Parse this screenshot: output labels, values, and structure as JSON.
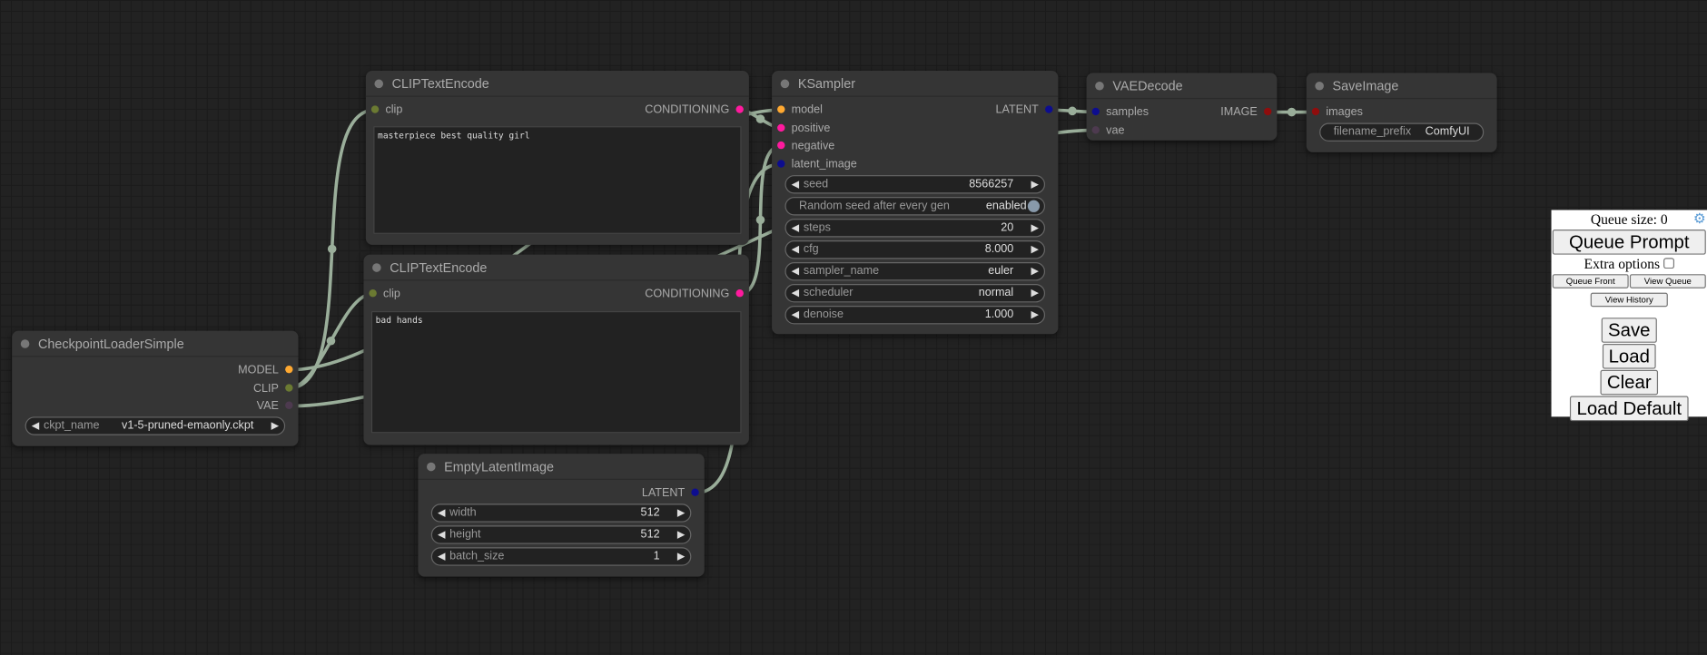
{
  "slot_colors": {
    "MODEL": "#ffa931",
    "CLIP": "#6b7a32",
    "VAE": "#4d3a4f",
    "CONDITIONING": "#ff1a9e",
    "LATENT": "#0d0d8f",
    "IMAGE": "#8f0d0d",
    "link": "#9aae9a"
  },
  "nodes": {
    "clip1": {
      "title": "CLIPTextEncode",
      "inputs": [
        {
          "name": "clip",
          "type": "CLIP"
        }
      ],
      "outputs": [
        {
          "name": "CONDITIONING",
          "type": "CONDITIONING"
        }
      ],
      "text": "masterpiece best quality girl"
    },
    "clip2": {
      "title": "CLIPTextEncode",
      "inputs": [
        {
          "name": "clip",
          "type": "CLIP"
        }
      ],
      "outputs": [
        {
          "name": "CONDITIONING",
          "type": "CONDITIONING"
        }
      ],
      "text": "bad hands"
    },
    "ckpt": {
      "title": "CheckpointLoaderSimple",
      "inputs": [],
      "outputs": [
        {
          "name": "MODEL",
          "type": "MODEL"
        },
        {
          "name": "CLIP",
          "type": "CLIP"
        },
        {
          "name": "VAE",
          "type": "VAE"
        }
      ],
      "widgets": [
        {
          "label": "ckpt_name",
          "value": "v1-5-pruned-emaonly.ckpt",
          "kind": "combo"
        }
      ]
    },
    "latent": {
      "title": "EmptyLatentImage",
      "inputs": [],
      "outputs": [
        {
          "name": "LATENT",
          "type": "LATENT"
        }
      ],
      "widgets": [
        {
          "label": "width",
          "value": "512",
          "kind": "number"
        },
        {
          "label": "height",
          "value": "512",
          "kind": "number"
        },
        {
          "label": "batch_size",
          "value": "1",
          "kind": "number"
        }
      ]
    },
    "ksampler": {
      "title": "KSampler",
      "inputs": [
        {
          "name": "model",
          "type": "MODEL"
        },
        {
          "name": "positive",
          "type": "CONDITIONING"
        },
        {
          "name": "negative",
          "type": "CONDITIONING"
        },
        {
          "name": "latent_image",
          "type": "LATENT"
        }
      ],
      "outputs": [
        {
          "name": "LATENT",
          "type": "LATENT"
        }
      ],
      "widgets": [
        {
          "label": "seed",
          "value": "8566257",
          "kind": "number"
        },
        {
          "label": "Random seed after every gen",
          "value": "enabled",
          "kind": "toggle"
        },
        {
          "label": "steps",
          "value": "20",
          "kind": "number"
        },
        {
          "label": "cfg",
          "value": "8.000",
          "kind": "number"
        },
        {
          "label": "sampler_name",
          "value": "euler",
          "kind": "combo"
        },
        {
          "label": "scheduler",
          "value": "normal",
          "kind": "combo"
        },
        {
          "label": "denoise",
          "value": "1.000",
          "kind": "number"
        }
      ]
    },
    "vaedecode": {
      "title": "VAEDecode",
      "inputs": [
        {
          "name": "samples",
          "type": "LATENT"
        },
        {
          "name": "vae",
          "type": "VAE"
        }
      ],
      "outputs": [
        {
          "name": "IMAGE",
          "type": "IMAGE"
        }
      ]
    },
    "save": {
      "title": "SaveImage",
      "inputs": [
        {
          "name": "images",
          "type": "IMAGE"
        }
      ],
      "outputs": [],
      "widgets": [
        {
          "label": "filename_prefix",
          "value": "ComfyUI",
          "kind": "text"
        }
      ]
    }
  },
  "links": [
    [
      "ckpt",
      0,
      "ksampler",
      0
    ],
    [
      "ckpt",
      1,
      "clip1",
      0
    ],
    [
      "ckpt",
      1,
      "clip2",
      0
    ],
    [
      "ckpt",
      2,
      "vaedecode",
      1
    ],
    [
      "clip1",
      0,
      "ksampler",
      1
    ],
    [
      "clip2",
      0,
      "ksampler",
      2
    ],
    [
      "latent",
      0,
      "ksampler",
      3
    ],
    [
      "ksampler",
      0,
      "vaedecode",
      0
    ],
    [
      "vaedecode",
      0,
      "save",
      0
    ]
  ],
  "panel": {
    "queue_size": "Queue size: 0",
    "settings_icon": "gear-icon",
    "queue_prompt": "Queue Prompt",
    "extra_options": "Extra options",
    "queue_front": "Queue Front",
    "view_queue": "View Queue",
    "view_history": "View History",
    "save": "Save",
    "load": "Load",
    "clear": "Clear",
    "load_default": "Load Default"
  }
}
